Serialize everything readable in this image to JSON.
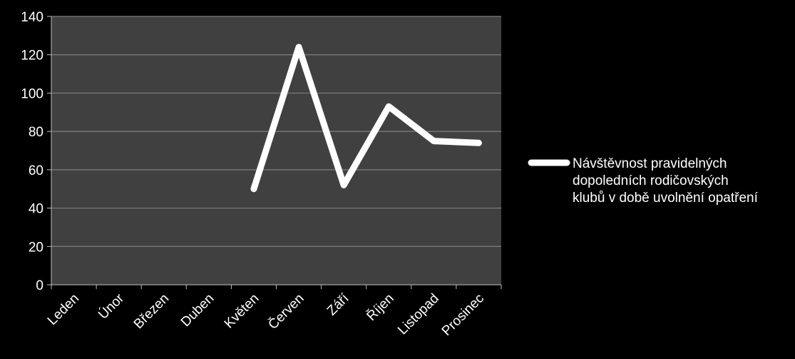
{
  "chart_data": {
    "type": "line",
    "categories": [
      "Leden",
      "Únor",
      "Březen",
      "Duben",
      "Květen",
      "Červen",
      "Září",
      "Říjen",
      "Listopad",
      "Prosinec"
    ],
    "series": [
      {
        "name": "Návštěvnost pravidelných dopoledních rodičovských klubů v době uvolnění opatření",
        "name_lines": [
          "Návštěvnost pravidelných",
          "dopoledních rodičovských",
          "klubů v době uvolnění opatření"
        ],
        "values": [
          null,
          null,
          null,
          null,
          50,
          124,
          52,
          93,
          75,
          74
        ],
        "color": "#ffffff"
      }
    ],
    "ylim": [
      0,
      140
    ],
    "yticks": [
      0,
      20,
      40,
      60,
      80,
      100,
      120,
      140
    ],
    "grid": true,
    "legend_position": "right",
    "plot_background": "#404040",
    "page_background": "#000000",
    "grid_color": "#7f7f7f"
  }
}
